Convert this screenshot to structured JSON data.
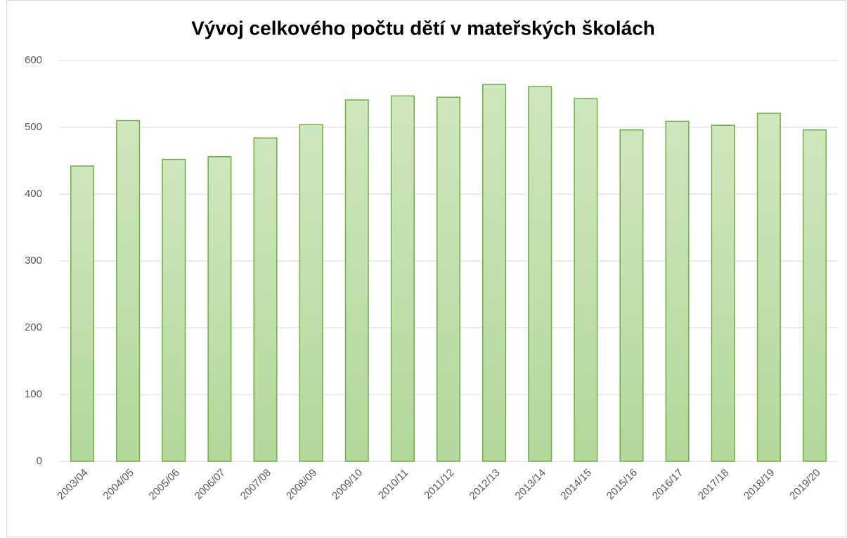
{
  "chart_data": {
    "type": "bar",
    "title": "Vývoj celkového počtu dětí v mateřských školách",
    "categories": [
      "2003/04",
      "2004/05",
      "2005/06",
      "2006/07",
      "2007/08",
      "2008/09",
      "2009/10",
      "2010/11",
      "2011/12",
      "2012/13",
      "2013/14",
      "2014/15",
      "2015/16",
      "2016/17",
      "2017/18",
      "2018/19",
      "2019/20"
    ],
    "values": [
      442,
      510,
      452,
      456,
      484,
      504,
      541,
      547,
      545,
      564,
      561,
      543,
      496,
      509,
      503,
      521,
      496
    ],
    "color": "#70ad47",
    "ylim": [
      0,
      600
    ],
    "yticks": [
      0,
      100,
      200,
      300,
      400,
      500,
      600
    ],
    "grid": true
  }
}
